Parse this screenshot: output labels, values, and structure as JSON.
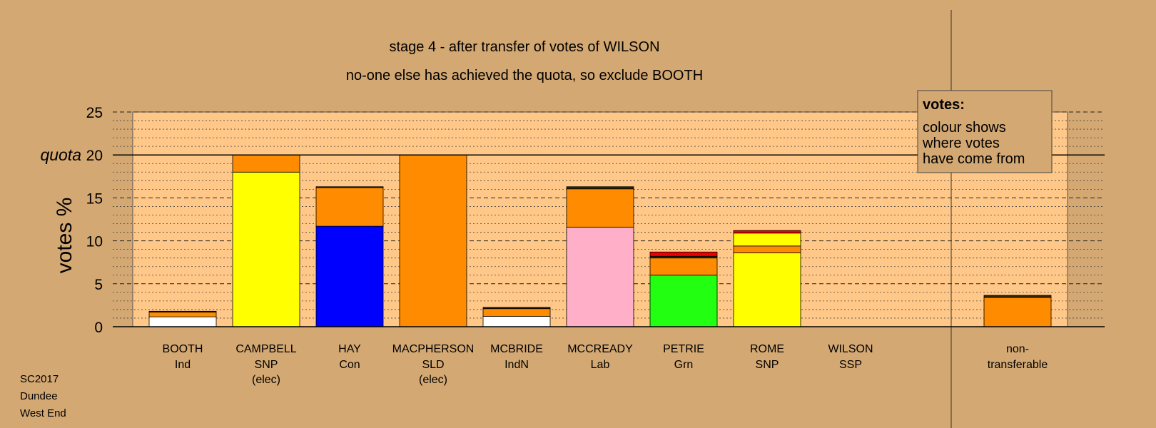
{
  "chart_data": {
    "type": "bar",
    "stacked": true,
    "title": "stage 4 - after transfer of votes of WILSON",
    "subtitle": "no-one else has achieved the quota, so exclude BOOTH",
    "ylabel": "votes %",
    "ylim": [
      0,
      25
    ],
    "yticks": [
      0,
      5,
      10,
      15,
      20,
      25
    ],
    "quota": {
      "label": "quota",
      "value": 20
    },
    "grid": true,
    "legend": {
      "title": "votes:",
      "lines": [
        "colour shows",
        "where votes",
        "have come from"
      ],
      "placement": "top-right"
    },
    "colors": {
      "white": "#ffffff",
      "yellow": "#ffff00",
      "blue": "#0000ff",
      "orange": "#ff8c00",
      "pink": "#ffafc8",
      "green": "#22ff11",
      "red": "#ee0000",
      "dark": "#3a2400"
    },
    "bars": [
      {
        "name": "BOOTH",
        "party": "Ind",
        "note": "",
        "segments": [
          {
            "color": "white",
            "value": 1.15
          },
          {
            "color": "orange",
            "value": 0.55
          },
          {
            "color": "dark",
            "value": 0.1
          }
        ]
      },
      {
        "name": "CAMPBELL",
        "party": "SNP",
        "note": "(elec)",
        "segments": [
          {
            "color": "yellow",
            "value": 18.0
          },
          {
            "color": "orange",
            "value": 2.0
          }
        ]
      },
      {
        "name": "HAY",
        "party": "Con",
        "note": "",
        "segments": [
          {
            "color": "blue",
            "value": 11.7
          },
          {
            "color": "orange",
            "value": 4.5
          },
          {
            "color": "dark",
            "value": 0.1
          }
        ]
      },
      {
        "name": "MACPHERSON",
        "party": "SLD",
        "note": "(elec)",
        "segments": [
          {
            "color": "orange",
            "value": 20.0
          }
        ]
      },
      {
        "name": "MCBRIDE",
        "party": "IndN",
        "note": "",
        "segments": [
          {
            "color": "white",
            "value": 1.2
          },
          {
            "color": "orange",
            "value": 0.9
          },
          {
            "color": "dark",
            "value": 0.15
          }
        ]
      },
      {
        "name": "MCCREADY",
        "party": "Lab",
        "note": "",
        "segments": [
          {
            "color": "pink",
            "value": 11.6
          },
          {
            "color": "orange",
            "value": 4.45
          },
          {
            "color": "dark",
            "value": 0.25
          }
        ]
      },
      {
        "name": "PETRIE",
        "party": "Grn",
        "note": "",
        "segments": [
          {
            "color": "green",
            "value": 6.0
          },
          {
            "color": "orange",
            "value": 2.0
          },
          {
            "color": "dark",
            "value": 0.2
          },
          {
            "color": "red",
            "value": 0.5
          }
        ]
      },
      {
        "name": "ROME",
        "party": "SNP",
        "note": "",
        "segments": [
          {
            "color": "yellow",
            "value": 8.6
          },
          {
            "color": "orange",
            "value": 0.8
          },
          {
            "color": "yellow",
            "value": 1.5
          },
          {
            "color": "red",
            "value": 0.3
          }
        ]
      },
      {
        "name": "WILSON",
        "party": "SSP",
        "note": "",
        "segments": []
      }
    ],
    "nontransferable": {
      "label_lines": [
        "non-",
        "transferable"
      ],
      "segments": [
        {
          "color": "orange",
          "value": 3.4
        },
        {
          "color": "dark",
          "value": 0.25
        }
      ]
    }
  },
  "footer": {
    "line1": "SC2017",
    "line2": "Dundee",
    "line3": "West End"
  }
}
